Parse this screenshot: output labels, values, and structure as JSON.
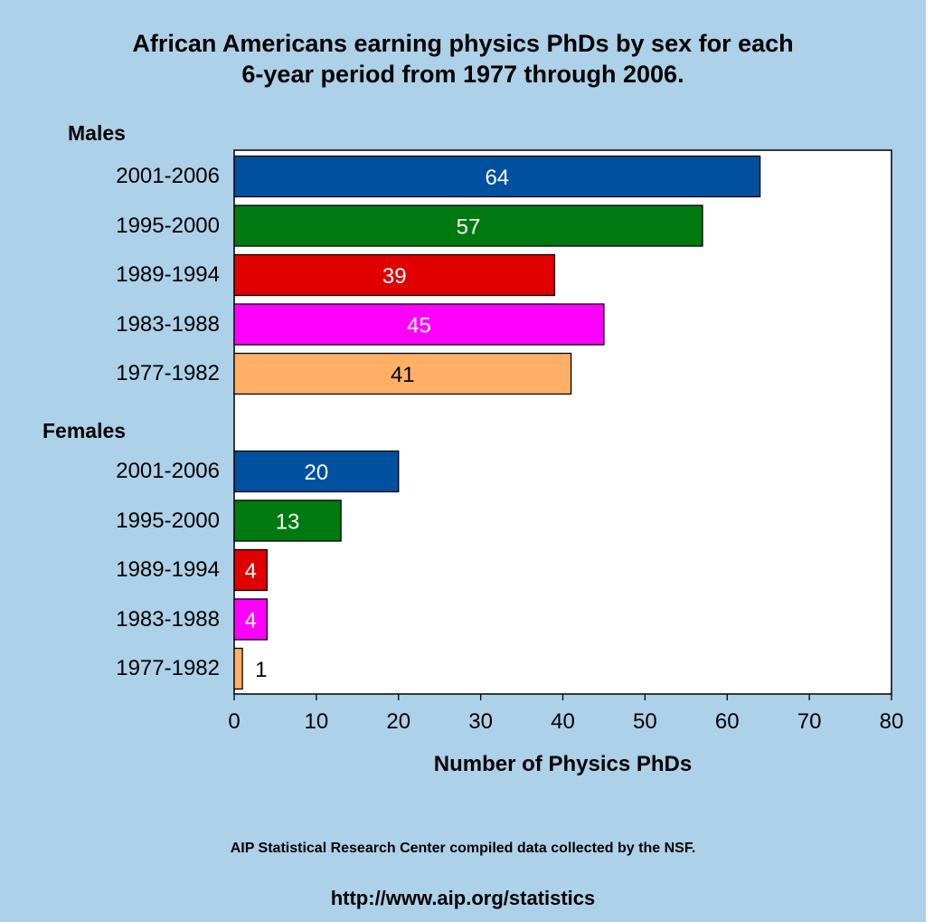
{
  "title_line1": "African Americans earning physics PhDs by sex for each",
  "title_line2": "6-year period from 1977 through 2006.",
  "footer_source": "AIP Statistical Research Center compiled data collected by the NSF.",
  "footer_url": "http://www.aip.org/statistics",
  "colors": {
    "background": "#acd1e8",
    "plot_bg": "#ffffff"
  },
  "chart_data": {
    "type": "bar",
    "orientation": "horizontal",
    "xlabel": "Number of Physics PhDs",
    "xlim": [
      0,
      80
    ],
    "xticks": [
      0,
      10,
      20,
      30,
      40,
      50,
      60,
      70,
      80
    ],
    "grid": false,
    "groups": [
      {
        "name": "Males",
        "categories": [
          "2001-2006",
          "1995-2000",
          "1989-1994",
          "1983-1988",
          "1977-1982"
        ],
        "values": [
          64,
          57,
          39,
          45,
          41
        ]
      },
      {
        "name": "Females",
        "categories": [
          "2001-2006",
          "1995-2000",
          "1989-1994",
          "1983-1988",
          "1977-1982"
        ],
        "values": [
          20,
          13,
          4,
          4,
          1
        ]
      }
    ],
    "category_colors": {
      "2001-2006": "#0050a0",
      "1995-2000": "#007a10",
      "1989-1994": "#e00000",
      "1983-1988": "#ff00ff",
      "1977-1982": "#ffb066"
    },
    "label_colors": {
      "2001-2006": "#ffffff",
      "1995-2000": "#ffffff",
      "1989-1994": "#ffffff",
      "1983-1988": "#ffffff",
      "1977-1982": "#000000"
    }
  }
}
